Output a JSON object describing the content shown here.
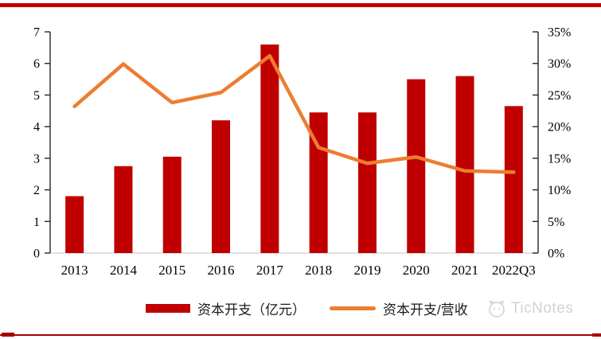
{
  "colors": {
    "bar": "#C00000",
    "line": "#ED7D31",
    "top_border": "#C00000",
    "bottom_border": "#A40000",
    "axis": "#262626",
    "baseline": "#D9D9D9",
    "watermark": "#D2D2D2"
  },
  "chart_data": {
    "type": "bar+line combo",
    "title": "",
    "categories": [
      "2013",
      "2014",
      "2015",
      "2016",
      "2017",
      "2018",
      "2019",
      "2020",
      "2021",
      "2022Q3"
    ],
    "series": [
      {
        "name": "资本开支（亿元）",
        "type": "bar",
        "axis": "left",
        "color": "#C00000",
        "values": [
          1.8,
          2.75,
          3.05,
          4.2,
          6.6,
          4.45,
          4.45,
          5.5,
          5.6,
          4.65
        ]
      },
      {
        "name": "资本开支/营收",
        "type": "line",
        "axis": "right",
        "color": "#ED7D31",
        "values_pct": [
          23.2,
          29.9,
          23.8,
          25.4,
          31.2,
          16.7,
          14.2,
          15.2,
          13.0,
          12.8
        ]
      }
    ],
    "left_axis": {
      "min": 0,
      "max": 7,
      "tick_step": 1,
      "labels": [
        "0",
        "1",
        "2",
        "3",
        "4",
        "5",
        "6",
        "7"
      ]
    },
    "right_axis": {
      "min": 0,
      "max": 35,
      "tick_step": 5,
      "labels": [
        "0%",
        "5%",
        "10%",
        "15%",
        "20%",
        "25%",
        "30%",
        "35%"
      ]
    },
    "grid": false,
    "legend_position": "bottom"
  },
  "legend": {
    "bar_label": "资本开支（亿元）",
    "line_label": "资本开支/营收"
  },
  "watermark": {
    "text": "TicNotes"
  }
}
